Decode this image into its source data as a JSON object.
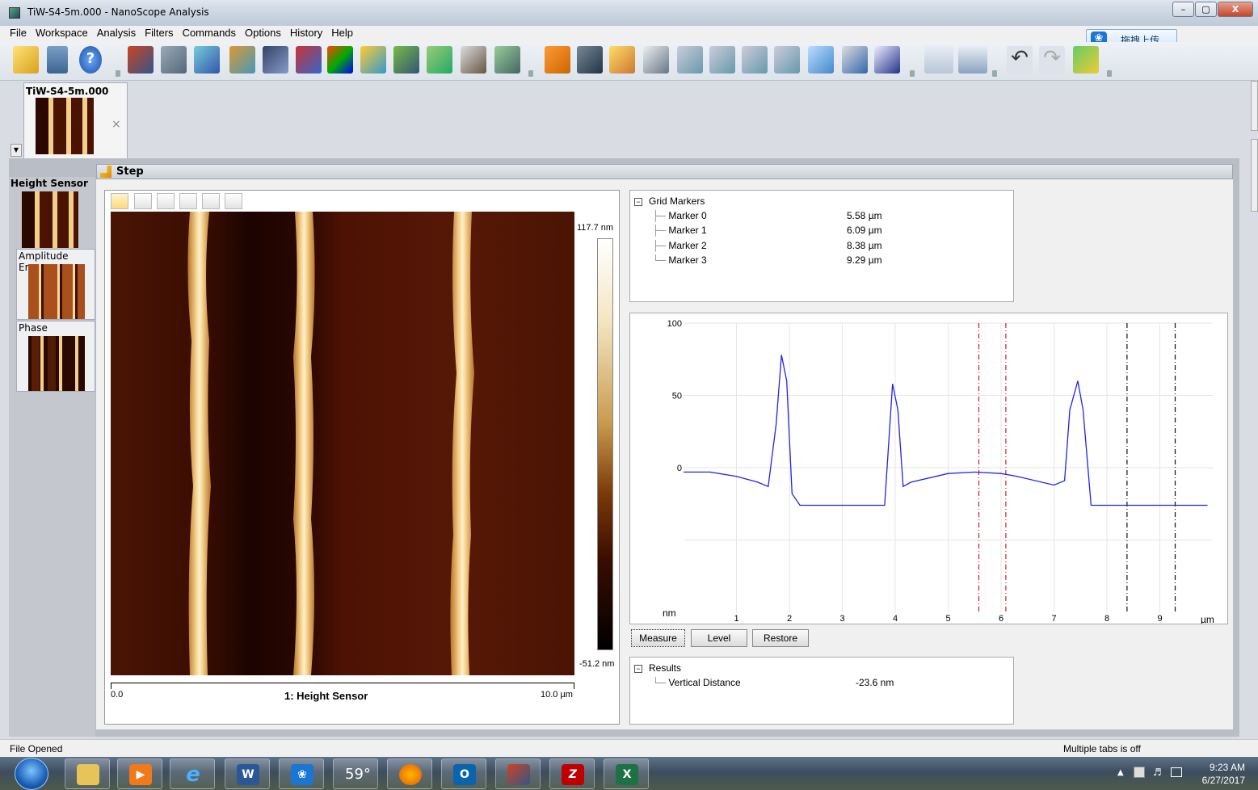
{
  "window": {
    "title": "TiW-S4-5m.000 - NanoScope Analysis",
    "controls": [
      "–",
      "▢",
      "X"
    ]
  },
  "menu": [
    "File",
    "Workspace",
    "Analysis",
    "Filters",
    "Commands",
    "Options",
    "History",
    "Help"
  ],
  "upload_button": "拖拽上传",
  "file_tab": {
    "label": "TiW-S4-5m.000",
    "close": "×"
  },
  "step_label": "Step",
  "channels": [
    "Height Sensor",
    "Amplitude Error",
    "Phase"
  ],
  "image": {
    "colorbar_max": "117.7 nm",
    "colorbar_min": "-51.2 nm",
    "scale_start": "0.0",
    "scale_end": "10.0 µm",
    "caption": "1: Height Sensor"
  },
  "grid_markers": {
    "title": "Grid Markers",
    "markers": [
      {
        "name": "Marker 0",
        "value": "5.58 µm"
      },
      {
        "name": "Marker 1",
        "value": "6.09 µm"
      },
      {
        "name": "Marker 2",
        "value": "8.38 µm"
      },
      {
        "name": "Marker 3",
        "value": "9.29 µm"
      }
    ]
  },
  "buttons": {
    "measure": "Measure",
    "level": "Level",
    "restore": "Restore"
  },
  "results": {
    "title": "Results",
    "label": "Vertical Distance",
    "value": "-23.6 nm"
  },
  "status": {
    "left": "File Opened",
    "right": "Multiple tabs is off"
  },
  "taskbar": {
    "weather": "59°",
    "time": "9:23 AM",
    "date": "6/27/2017"
  },
  "chart_data": {
    "type": "line",
    "ylabel": "nm",
    "xlabel": "µm",
    "xlim": [
      0,
      10
    ],
    "ylim": [
      -100,
      100
    ],
    "yticks": [
      100,
      50,
      0
    ],
    "xticks": [
      1,
      2,
      3,
      4,
      5,
      6,
      7,
      8,
      9
    ],
    "grid": true,
    "series": [
      {
        "color": "#2222ee",
        "x": [
          0,
          0.5,
          1,
          1.4,
          1.6,
          1.75,
          1.85,
          1.95,
          2.05,
          2.2,
          2.5,
          3.0,
          3.5,
          3.8,
          3.95,
          4.05,
          4.15,
          4.3,
          5.0,
          5.5,
          6.0,
          6.3,
          7.0,
          7.2,
          7.3,
          7.45,
          7.55,
          7.7,
          7.9,
          8.5,
          9.0,
          9.5,
          9.9
        ],
        "y": [
          -3,
          -3,
          -6,
          -10,
          -13,
          30,
          78,
          60,
          -18,
          -26,
          -26,
          -26,
          -26,
          -26,
          58,
          40,
          -13,
          -10,
          -4,
          -3,
          -4,
          -6,
          -12,
          -9,
          40,
          60,
          40,
          -26,
          -26,
          -26,
          -26,
          -26,
          -26
        ]
      }
    ],
    "markers_x": [
      5.58,
      6.09,
      8.38,
      9.29
    ],
    "marker_colors": [
      "#cc2222",
      "#cc2222",
      "#111111",
      "#111111"
    ]
  }
}
